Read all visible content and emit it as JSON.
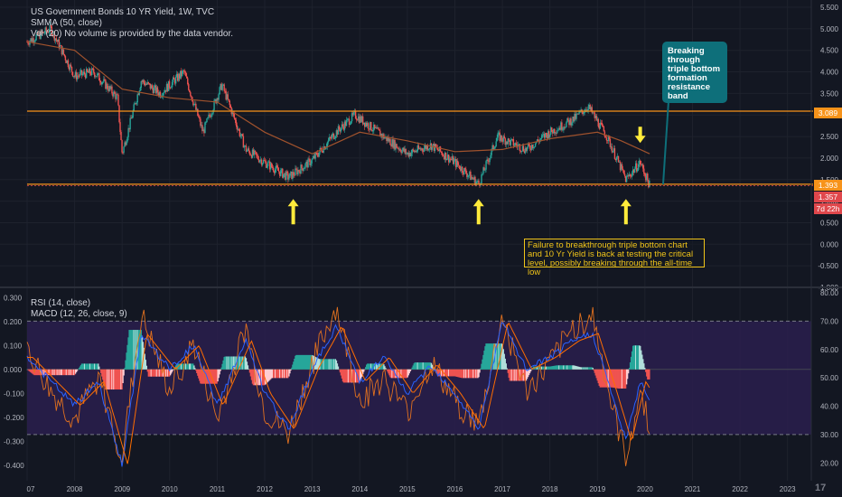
{
  "main_legend": {
    "title": "US Government Bonds 10 YR Yield, 1W, TVC",
    "sma": "SMMA (50, close)",
    "vol": "Vol (20) No volume is provided by the data vendor."
  },
  "sub_legend": {
    "rsi": "RSI (14, close)",
    "macd": "MACD (12, 26, close, 9)"
  },
  "annotations": {
    "teal_callout": "Breaking through triple bottom formation resistance band",
    "note": "Failure to breakthrough triple bottom chart and 10 Yr Yield is back at testing the critical level, possibly breaking through the all-time low"
  },
  "price_tags": [
    {
      "text": "3.089",
      "color": "#f7931a"
    },
    {
      "text": "1.393",
      "color": "#f7931a"
    },
    {
      "text": "1.357",
      "color": "#e0474c"
    },
    {
      "text": "7d 22h",
      "color": "#e0474c"
    }
  ],
  "logo": "17",
  "colors": {
    "background": "#131722",
    "up": "#26a69a",
    "down": "#ef5350",
    "sma": "#a0522d",
    "resistance": "#f7931a",
    "arrow": "#ffeb3b",
    "rsi_band": "#2a1f4d"
  },
  "chart_data": [
    {
      "type": "candlestick",
      "title": "US Government Bonds 10 YR Yield, 1W, TVC",
      "x_ticks": [
        "07",
        "2008",
        "2009",
        "2010",
        "2011",
        "2012",
        "2013",
        "2014",
        "2015",
        "2016",
        "2017",
        "2018",
        "2019",
        "2020",
        "2021",
        "2022",
        "2023"
      ],
      "y_ticks": [
        "5.500",
        "5.000",
        "4.500",
        "4.000",
        "3.500",
        "3.000",
        "2.500",
        "2.000",
        "1.500",
        "1.000",
        "0.500",
        "0.000",
        "-0.500",
        "-1.000"
      ],
      "ylim": [
        -1.0,
        5.5
      ],
      "xlim": [
        2007.0,
        2023.5
      ],
      "series": [
        {
          "name": "US Government Bonds 10 YR Yield",
          "x": [
            2007.0,
            2007.5,
            2008.0,
            2008.4,
            2008.9,
            2009.0,
            2009.4,
            2009.8,
            2010.3,
            2010.7,
            2011.1,
            2011.6,
            2012.0,
            2012.5,
            2013.0,
            2013.5,
            2013.9,
            2014.5,
            2015.0,
            2015.5,
            2016.0,
            2016.5,
            2016.9,
            2017.5,
            2018.0,
            2018.5,
            2018.8,
            2019.2,
            2019.6,
            2019.9,
            2020.1
          ],
          "values": [
            4.7,
            5.0,
            3.9,
            4.0,
            3.4,
            2.1,
            3.8,
            3.5,
            4.0,
            2.6,
            3.7,
            2.2,
            1.9,
            1.55,
            1.95,
            2.6,
            3.0,
            2.5,
            2.1,
            2.3,
            1.9,
            1.4,
            2.5,
            2.2,
            2.6,
            2.9,
            3.2,
            2.5,
            1.5,
            1.9,
            1.36
          ]
        },
        {
          "name": "SMMA (50, close)",
          "x": [
            2007.0,
            2008.0,
            2009.0,
            2010.0,
            2011.0,
            2012.0,
            2013.0,
            2014.0,
            2015.0,
            2016.0,
            2017.0,
            2018.0,
            2019.0,
            2019.5,
            2020.1
          ],
          "values": [
            4.7,
            4.5,
            3.6,
            3.4,
            3.3,
            2.6,
            2.1,
            2.6,
            2.4,
            2.15,
            2.2,
            2.45,
            2.6,
            2.4,
            2.1
          ]
        }
      ],
      "hlines": [
        3.089,
        1.393,
        1.357
      ],
      "markers": [
        {
          "x": 2012.6,
          "direction": "up"
        },
        {
          "x": 2016.5,
          "direction": "up"
        },
        {
          "x": 2019.6,
          "direction": "up"
        },
        {
          "x": 2019.9,
          "direction": "down"
        }
      ]
    },
    {
      "type": "line",
      "title": "RSI (14, close) / MACD (12, 26, close, 9)",
      "y_ticks_left": [
        "0.300",
        "0.200",
        "0.100",
        "0.000",
        "-0.100",
        "-0.200",
        "-0.300",
        "-0.400"
      ],
      "ylim_left": [
        -0.45,
        0.32
      ],
      "y_ticks_right": [
        "80.00",
        "70.00",
        "60.00",
        "50.00",
        "40.00",
        "30.00",
        "20.00"
      ],
      "ylim_right": [
        15,
        80
      ],
      "rsi_band": [
        30,
        70
      ],
      "series": [
        {
          "name": "RSI (14, close)",
          "x": [
            2007.0,
            2007.5,
            2008.0,
            2008.5,
            2009.0,
            2009.4,
            2010.0,
            2010.5,
            2011.0,
            2011.6,
            2012.0,
            2012.5,
            2013.0,
            2013.5,
            2014.0,
            2014.5,
            2015.0,
            2015.5,
            2016.0,
            2016.5,
            2017.0,
            2017.5,
            2018.0,
            2018.5,
            2018.9,
            2019.3,
            2019.6,
            2019.9,
            2020.1
          ],
          "values": [
            60,
            45,
            35,
            50,
            22,
            72,
            45,
            62,
            35,
            68,
            38,
            30,
            55,
            75,
            42,
            50,
            38,
            55,
            42,
            33,
            72,
            45,
            55,
            68,
            72,
            40,
            22,
            45,
            33
          ]
        },
        {
          "name": "MACD (12, 26, close, 9)",
          "x": [
            2007.0,
            2007.5,
            2008.0,
            2008.5,
            2009.0,
            2009.4,
            2010.0,
            2010.5,
            2011.0,
            2011.6,
            2012.0,
            2012.5,
            2013.0,
            2013.5,
            2014.0,
            2014.5,
            2015.0,
            2015.5,
            2016.0,
            2016.5,
            2017.0,
            2017.5,
            2018.0,
            2018.5,
            2018.9,
            2019.3,
            2019.6,
            2019.9,
            2020.1
          ],
          "values": [
            0.05,
            -0.05,
            -0.15,
            -0.05,
            -0.4,
            0.15,
            0.0,
            0.1,
            -0.15,
            0.12,
            -0.1,
            -0.25,
            0.0,
            0.18,
            -0.05,
            0.05,
            -0.1,
            0.02,
            -0.1,
            -0.25,
            0.2,
            0.0,
            0.05,
            0.12,
            0.15,
            -0.1,
            -0.3,
            -0.05,
            -0.12
          ]
        }
      ]
    }
  ]
}
